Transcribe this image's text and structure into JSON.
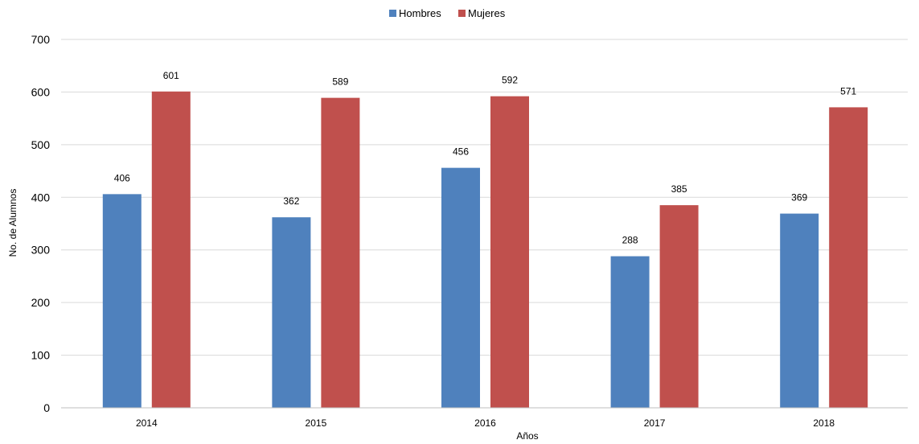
{
  "chart_data": {
    "type": "bar",
    "title": "",
    "xlabel": "Años",
    "ylabel": "No. de Alumnos",
    "categories": [
      "2014",
      "2015",
      "2016",
      "2017",
      "2018"
    ],
    "series": [
      {
        "name": "Hombres",
        "values": [
          406,
          362,
          456,
          288,
          369
        ],
        "color": "#4F81BD"
      },
      {
        "name": "Mujeres",
        "values": [
          601,
          589,
          592,
          385,
          571
        ],
        "color": "#C0504D"
      }
    ],
    "ylim": [
      0,
      700
    ],
    "yticks": [
      "0",
      "100",
      "200",
      "300",
      "400",
      "500",
      "600",
      "700"
    ],
    "grid": true,
    "legend_position": "top-center",
    "data_labels": true
  }
}
